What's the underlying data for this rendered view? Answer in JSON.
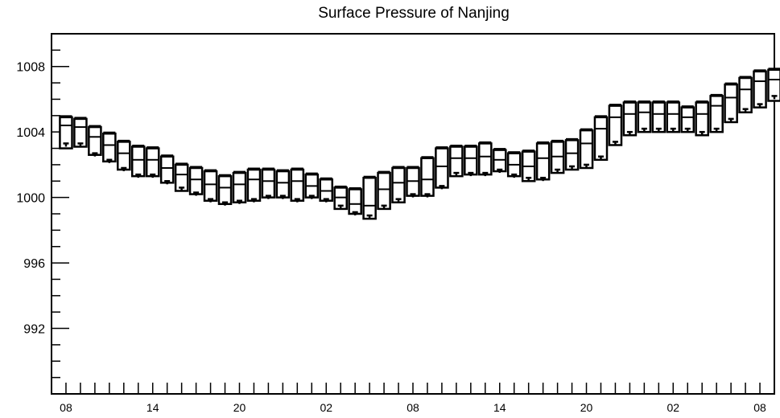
{
  "chart_data": {
    "type": "boxplot",
    "title": "Surface Pressure of Nanjing",
    "xlabel": "",
    "ylabel": "",
    "ylim": [
      988,
      1010
    ],
    "y_ticks": [
      992,
      996,
      1000,
      1004,
      1008
    ],
    "x_ticks": [
      "08",
      "14",
      "20",
      "02",
      "08",
      "14",
      "20",
      "02",
      "08"
    ],
    "x_tick_index": [
      0,
      6,
      12,
      18,
      24,
      30,
      36,
      42,
      48
    ],
    "x_range": [
      -1,
      49
    ],
    "grid": false,
    "series": [
      {
        "box_bottom": [
          1003.0,
          1003.1,
          1002.6,
          1002.2,
          1001.7,
          1001.3,
          1001.3,
          1000.9,
          1000.4,
          1000.2,
          999.8,
          999.6,
          999.7,
          999.8,
          1000.0,
          1000.0,
          999.8,
          1000.0,
          999.8,
          999.3,
          999.0,
          998.7,
          999.3,
          999.7,
          1000.1,
          1000.1,
          1000.6,
          1001.3,
          1001.4,
          1001.4,
          1001.6,
          1001.3,
          1001.0,
          1001.1,
          1001.5,
          1001.7,
          1001.8,
          1002.3,
          1003.2,
          1003.8,
          1004.0,
          1004.0,
          1004.0,
          1004.0,
          1003.8,
          1004.0,
          1004.6,
          1005.2,
          1005.5,
          1005.9
        ],
        "box_top": [
          1004.9,
          1004.8,
          1004.3,
          1003.9,
          1003.4,
          1003.1,
          1003.0,
          1002.5,
          1002.0,
          1001.8,
          1001.6,
          1001.3,
          1001.5,
          1001.7,
          1001.7,
          1001.6,
          1001.7,
          1001.4,
          1001.1,
          1000.6,
          1000.5,
          1001.2,
          1001.5,
          1001.8,
          1001.8,
          1002.4,
          1003.0,
          1003.1,
          1003.1,
          1003.3,
          1002.9,
          1002.7,
          1002.8,
          1003.3,
          1003.4,
          1003.5,
          1004.1,
          1004.9,
          1005.6,
          1005.8,
          1005.8,
          1005.8,
          1005.8,
          1005.5,
          1005.8,
          1006.2,
          1006.9,
          1007.3,
          1007.7,
          1007.8
        ],
        "median": [
          1004.4,
          1004.3,
          1003.7,
          1003.2,
          1002.7,
          1002.3,
          1002.3,
          1001.8,
          1001.4,
          1001.1,
          1000.8,
          1000.6,
          1000.8,
          1001.1,
          1001.0,
          1000.9,
          1001.0,
          1000.7,
          1000.4,
          1000.0,
          999.6,
          999.5,
          1000.5,
          1000.9,
          1001.0,
          1001.1,
          1001.9,
          1002.4,
          1002.4,
          1002.5,
          1002.3,
          1002.0,
          1001.9,
          1002.4,
          1002.5,
          1002.7,
          1003.3,
          1004.2,
          1004.9,
          1005.1,
          1005.2,
          1005.1,
          1005.1,
          1004.9,
          1005.1,
          1005.6,
          1006.1,
          1006.6,
          1007.1,
          1007.2
        ],
        "marker": [
          1003.3,
          1003.3,
          1002.7,
          1002.3,
          1001.8,
          1001.4,
          1001.4,
          1001.0,
          1000.6,
          1000.3,
          999.9,
          999.7,
          999.8,
          999.9,
          1000.1,
          1000.1,
          999.9,
          1000.1,
          999.9,
          999.5,
          999.1,
          998.9,
          999.5,
          999.9,
          1000.2,
          1000.2,
          1000.7,
          1001.5,
          1001.5,
          1001.5,
          1001.7,
          1001.4,
          1001.2,
          1001.2,
          1001.7,
          1001.9,
          1002.0,
          1002.5,
          1003.4,
          1004.0,
          1004.2,
          1004.2,
          1004.2,
          1004.2,
          1004.0,
          1004.2,
          1004.8,
          1005.4,
          1005.7,
          1006.2
        ]
      }
    ]
  }
}
